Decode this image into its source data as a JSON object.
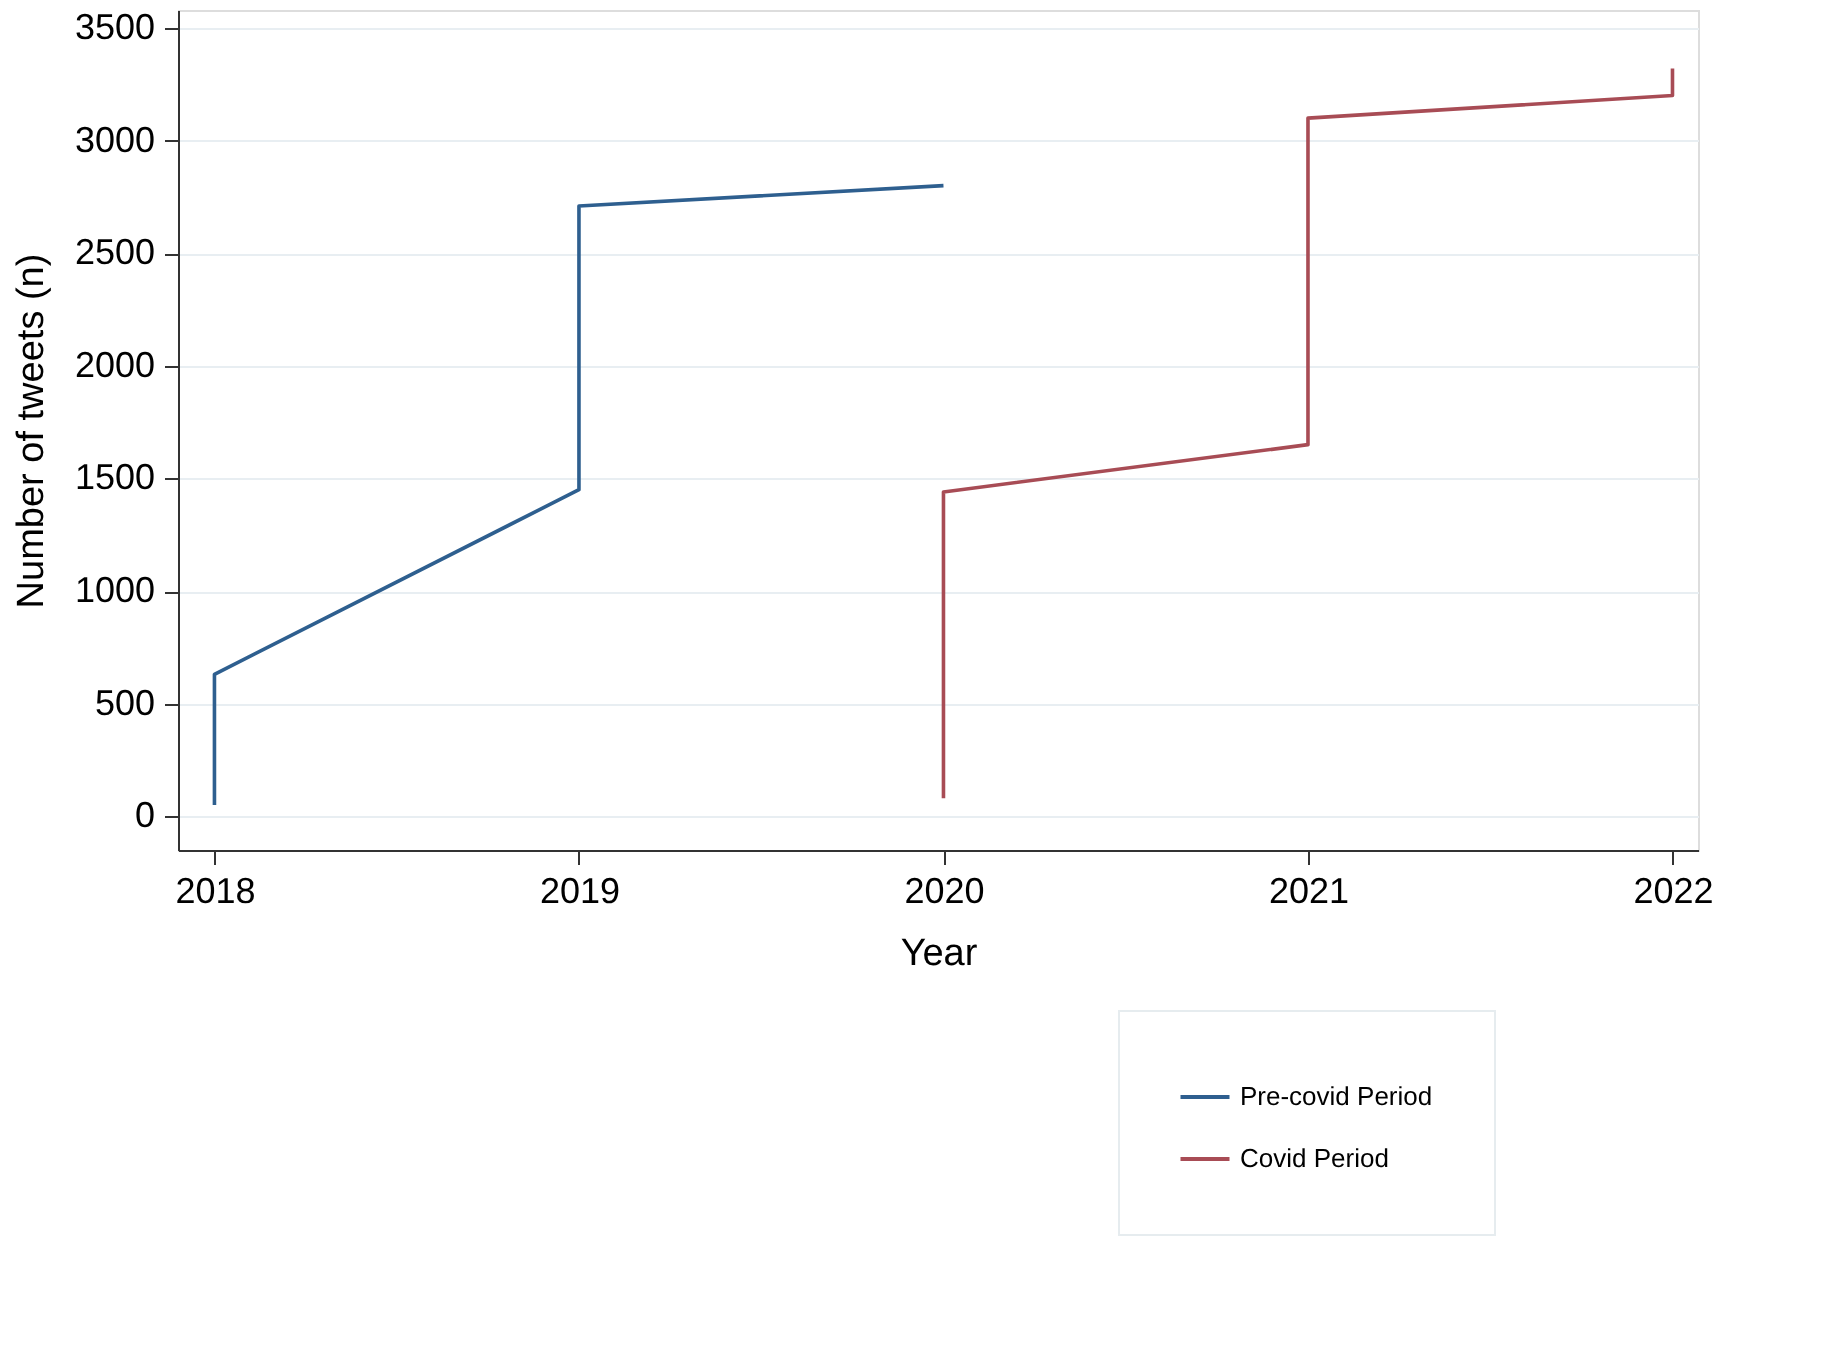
{
  "chart_data": {
    "type": "line",
    "xlabel": "Year",
    "ylabel": "Number of tweets (n)",
    "xlim": [
      2017.9,
      2022.07
    ],
    "xticks": [
      2018,
      2019,
      2020,
      2021,
      2022
    ],
    "ylim": [
      -150,
      3580
    ],
    "yticks": [
      0,
      500,
      1000,
      1500,
      2000,
      2500,
      3000,
      3500
    ],
    "grid": "y",
    "legend": "bottom right",
    "marker": "none",
    "line_style": "solid",
    "series": [
      {
        "name": "Pre-covid Period",
        "color": "#2e5f8f",
        "x": [
          2018,
          2018,
          2019,
          2019,
          2020
        ],
        "values": [
          50,
          630,
          1450,
          2710,
          2800
        ]
      },
      {
        "name": "Covid Period",
        "color": "#a84c55",
        "x": [
          2020,
          2020,
          2021,
          2021,
          2022,
          2022
        ],
        "values": [
          80,
          1440,
          1650,
          3100,
          3200,
          3320
        ]
      }
    ]
  }
}
